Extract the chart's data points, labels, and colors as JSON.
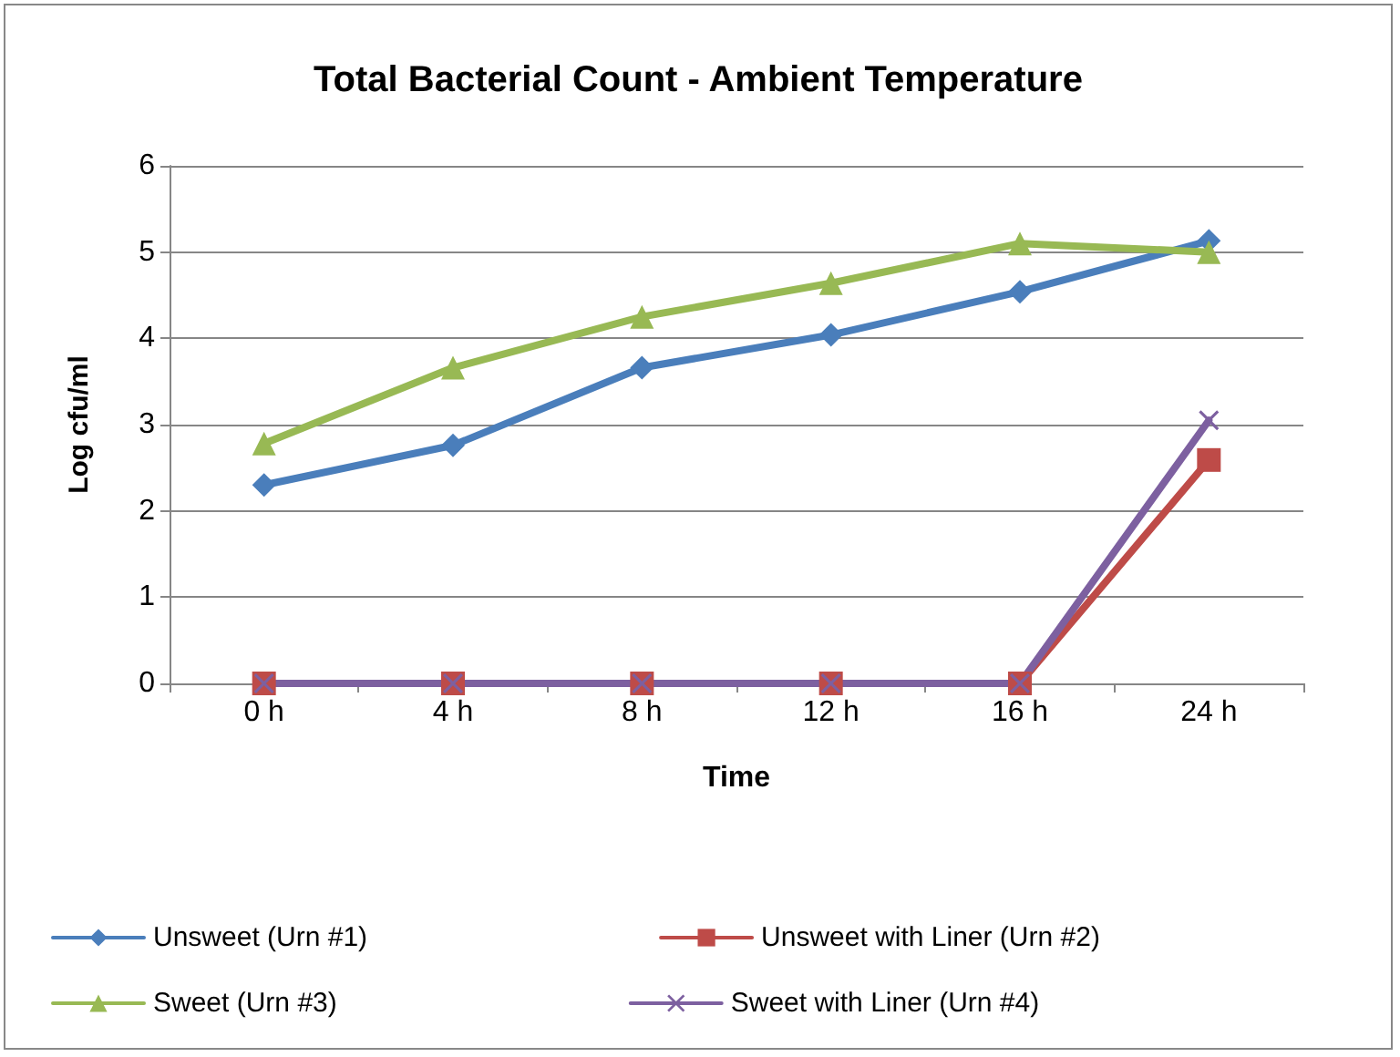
{
  "chart_data": {
    "type": "line",
    "title": "Total Bacterial Count - Ambient Temperature",
    "xlabel": "Time",
    "ylabel": "Log cfu/ml",
    "categories": [
      "0 h",
      "4 h",
      "8 h",
      "12 h",
      "16 h",
      "24 h"
    ],
    "series": [
      {
        "name": "Unsweet (Urn #1)",
        "color": "#4a7ebb",
        "marker": "diamond",
        "values": [
          2.3,
          2.76,
          3.66,
          4.04,
          4.54,
          5.13
        ]
      },
      {
        "name": "Unsweet with Liner (Urn #2)",
        "color": "#be4b48",
        "marker": "square",
        "values": [
          0,
          0,
          0,
          0,
          0,
          2.59
        ]
      },
      {
        "name": "Sweet (Urn #3)",
        "color": "#98b954",
        "marker": "triangle",
        "values": [
          2.78,
          3.66,
          4.25,
          4.64,
          5.1,
          5.0
        ]
      },
      {
        "name": "Sweet with Liner (Urn #4)",
        "color": "#7d60a0",
        "marker": "cross",
        "values": [
          0,
          0,
          0,
          0,
          0,
          3.05
        ]
      }
    ],
    "ylim": [
      0,
      6
    ],
    "yticks": [
      0,
      1,
      2,
      3,
      4,
      5,
      6
    ],
    "grid": "y",
    "legend": "bottom",
    "line_style": "solid"
  }
}
